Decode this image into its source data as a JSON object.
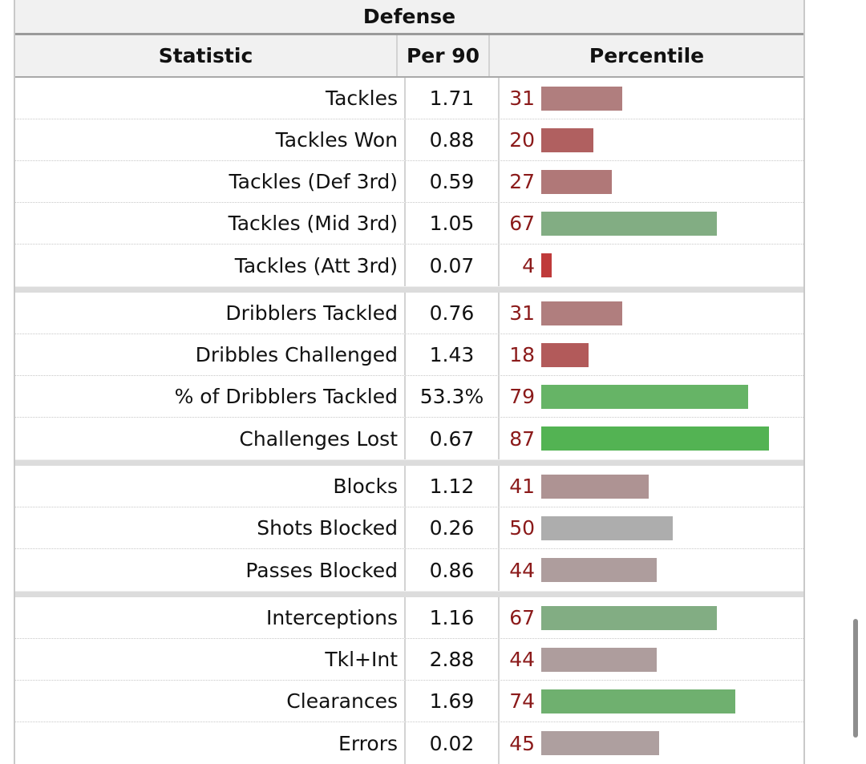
{
  "table": {
    "title": "Defense",
    "headers": {
      "statistic": "Statistic",
      "per90": "Per 90",
      "percentile": "Percentile"
    },
    "groups": [
      [
        {
          "stat": "Tackles",
          "per90": "1.71",
          "percentile": "31",
          "bar_color": "#b07e7e"
        },
        {
          "stat": "Tackles Won",
          "per90": "0.88",
          "percentile": "20",
          "bar_color": "#b06060"
        },
        {
          "stat": "Tackles (Def 3rd)",
          "per90": "0.59",
          "percentile": "27",
          "bar_color": "#b07878"
        },
        {
          "stat": "Tackles (Mid 3rd)",
          "per90": "1.05",
          "percentile": "67",
          "bar_color": "#82ad83"
        },
        {
          "stat": "Tackles (Att 3rd)",
          "per90": "0.07",
          "percentile": "4",
          "bar_color": "#bf3a3a"
        }
      ],
      [
        {
          "stat": "Dribblers Tackled",
          "per90": "0.76",
          "percentile": "31",
          "bar_color": "#b07e7e"
        },
        {
          "stat": "Dribbles Challenged",
          "per90": "1.43",
          "percentile": "18",
          "bar_color": "#b25a5a"
        },
        {
          "stat": "% of Dribblers Tackled",
          "per90": "53.3%",
          "percentile": "79",
          "bar_color": "#66b466"
        },
        {
          "stat": "Challenges Lost",
          "per90": "0.67",
          "percentile": "87",
          "bar_color": "#53b353"
        }
      ],
      [
        {
          "stat": "Blocks",
          "per90": "1.12",
          "percentile": "41",
          "bar_color": "#ae9393"
        },
        {
          "stat": "Shots Blocked",
          "per90": "0.26",
          "percentile": "50",
          "bar_color": "#adadad"
        },
        {
          "stat": "Passes Blocked",
          "per90": "0.86",
          "percentile": "44",
          "bar_color": "#ae9d9d"
        }
      ],
      [
        {
          "stat": "Interceptions",
          "per90": "1.16",
          "percentile": "67",
          "bar_color": "#82ad83"
        },
        {
          "stat": "Tkl+Int",
          "per90": "2.88",
          "percentile": "44",
          "bar_color": "#ae9d9d"
        },
        {
          "stat": "Clearances",
          "per90": "1.69",
          "percentile": "74",
          "bar_color": "#6fb06f"
        },
        {
          "stat": "Errors",
          "per90": "0.02",
          "percentile": "45",
          "bar_color": "#ae9f9f"
        }
      ]
    ]
  }
}
